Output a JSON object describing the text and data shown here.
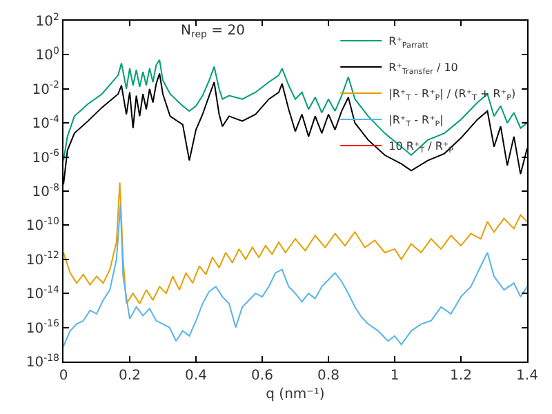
{
  "chart_data": {
    "type": "line",
    "xlabel": "q (nm⁻¹)",
    "annotations": [
      "N$_{rep}$ = 20"
    ],
    "log": "y",
    "legend": "top right",
    "xlim": [
      0,
      1.4
    ],
    "xticks": [
      0,
      0.2,
      0.4,
      0.6,
      0.8,
      1,
      1.2,
      1.4
    ],
    "ylim": [
      1e-18,
      100
    ],
    "yticks": [
      {
        "value": 100,
        "label": "10$^{2}$"
      },
      {
        "value": 1,
        "label": "10$^{0}$"
      },
      {
        "value": 0.01,
        "label": "10$^{-2}$"
      },
      {
        "value": 0.0001,
        "label": "10$^{-4}$"
      },
      {
        "value": 1e-06,
        "label": "10$^{-6}$"
      },
      {
        "value": 1e-08,
        "label": "10$^{-8}$"
      },
      {
        "value": 1e-10,
        "label": "10$^{-10}$"
      },
      {
        "value": 1e-12,
        "label": "10$^{-12}$"
      },
      {
        "value": 1e-14,
        "label": "10$^{-14}$"
      },
      {
        "value": 1e-16,
        "label": "10$^{-16}$"
      },
      {
        "value": 1e-18,
        "label": "10$^{-18}$"
      }
    ],
    "series": [
      {
        "name": "R⁺$_{Parratt}$",
        "color": "#009e73",
        "x": [
          0,
          0.012,
          0.033,
          0.074,
          0.116,
          0.165,
          0.175,
          0.19,
          0.2,
          0.21,
          0.22,
          0.23,
          0.24,
          0.25,
          0.26,
          0.27,
          0.28,
          0.29,
          0.3,
          0.322,
          0.36,
          0.38,
          0.4,
          0.42,
          0.44,
          0.455,
          0.47,
          0.48,
          0.5,
          0.54,
          0.58,
          0.62,
          0.65,
          0.66,
          0.68,
          0.7,
          0.72,
          0.74,
          0.76,
          0.78,
          0.8,
          0.82,
          0.84,
          0.86,
          0.88,
          0.92,
          0.97,
          1.02,
          1.05,
          1.1,
          1.15,
          1.2,
          1.25,
          1.28,
          1.3,
          1.32,
          1.34,
          1.36,
          1.38,
          1.4
        ],
        "values": [
          6.3e-07,
          1.6e-05,
          0.00025,
          0.0013,
          0.005,
          0.063,
          0.32,
          0.01,
          0.16,
          0.016,
          0.13,
          0.013,
          0.1,
          0.016,
          0.16,
          0.025,
          0.25,
          0.5,
          0.032,
          0.005,
          0.001,
          0.0005,
          0.001,
          0.004,
          0.032,
          0.2,
          0.01,
          0.0025,
          0.004,
          0.0025,
          0.0063,
          0.025,
          0.063,
          0.16,
          0.016,
          0.0025,
          0.0063,
          0.00063,
          0.0032,
          0.0004,
          0.0025,
          0.0005,
          0.004,
          0.05,
          0.0025,
          0.00025,
          2.5e-05,
          4e-06,
          1.3e-06,
          1e-05,
          2.5e-05,
          0.00016,
          0.0016,
          0.005,
          0.00025,
          0.001,
          0.0001,
          0.0004,
          5e-05,
          0.0001
        ]
      },
      {
        "name": "R⁺$_{Transfer}$ / 10",
        "color": "#000000",
        "x": [
          0,
          0.012,
          0.033,
          0.074,
          0.116,
          0.165,
          0.175,
          0.19,
          0.2,
          0.21,
          0.22,
          0.23,
          0.24,
          0.25,
          0.26,
          0.27,
          0.28,
          0.29,
          0.3,
          0.322,
          0.36,
          0.38,
          0.4,
          0.42,
          0.44,
          0.455,
          0.47,
          0.48,
          0.5,
          0.54,
          0.58,
          0.62,
          0.65,
          0.66,
          0.68,
          0.7,
          0.72,
          0.74,
          0.76,
          0.78,
          0.8,
          0.82,
          0.84,
          0.86,
          0.88,
          0.92,
          0.97,
          1.02,
          1.05,
          1.1,
          1.15,
          1.2,
          1.25,
          1.28,
          1.3,
          1.32,
          1.34,
          1.36,
          1.38,
          1.4
        ],
        "values": [
          2.5e-08,
          2.5e-06,
          2.5e-05,
          0.00013,
          0.0008,
          0.005,
          0.016,
          0.00032,
          0.0063,
          5e-05,
          0.004,
          0.00025,
          0.005,
          0.00063,
          0.01,
          0.0016,
          0.02,
          0.08,
          0.005,
          0.00025,
          8e-05,
          6.3e-07,
          4e-05,
          0.00032,
          0.004,
          0.025,
          0.00032,
          6.3e-05,
          0.00025,
          0.00013,
          0.00032,
          0.0025,
          0.0063,
          0.02,
          0.00063,
          3.2e-05,
          0.00032,
          1.6e-05,
          0.00025,
          2.5e-05,
          0.00032,
          4e-05,
          0.0005,
          0.0032,
          0.0001,
          1e-05,
          1.3e-06,
          4e-07,
          1.6e-07,
          6.3e-07,
          1.6e-06,
          1.3e-05,
          0.00016,
          0.0005,
          4e-06,
          6.3e-05,
          3.2e-07,
          1.6e-05,
          1e-07,
          3.2e-06
        ]
      },
      {
        "name": "|R⁺$_{T}$ - R⁺$_{P}$| / (R⁺$_{T}$ + R⁺$_{P}$)",
        "color": "#e69f00",
        "x": [
          0,
          0.02,
          0.04,
          0.06,
          0.08,
          0.1,
          0.12,
          0.14,
          0.16,
          0.17,
          0.18,
          0.19,
          0.21,
          0.23,
          0.25,
          0.27,
          0.29,
          0.31,
          0.33,
          0.35,
          0.37,
          0.39,
          0.41,
          0.43,
          0.45,
          0.47,
          0.49,
          0.51,
          0.53,
          0.55,
          0.57,
          0.59,
          0.61,
          0.63,
          0.65,
          0.67,
          0.7,
          0.73,
          0.76,
          0.79,
          0.82,
          0.85,
          0.88,
          0.91,
          0.94,
          0.97,
          1.0,
          1.02,
          1.05,
          1.08,
          1.11,
          1.14,
          1.17,
          1.2,
          1.23,
          1.26,
          1.28,
          1.3,
          1.33,
          1.36,
          1.38,
          1.4
        ],
        "values": [
          2.5e-12,
          1.6e-13,
          4e-14,
          1.3e-13,
          3.2e-14,
          1e-13,
          4e-14,
          2.5e-13,
          1e-11,
          3.2e-08,
          1e-12,
          2.5e-15,
          1e-14,
          2.5e-15,
          1.6e-14,
          4e-15,
          2.5e-14,
          1e-14,
          1e-13,
          1.6e-14,
          1.6e-13,
          4e-14,
          4e-13,
          1.3e-13,
          1.3e-12,
          3.2e-13,
          2.5e-12,
          6.3e-13,
          4e-12,
          1e-12,
          5e-12,
          1.3e-12,
          6.3e-12,
          2e-12,
          1e-11,
          2.5e-12,
          1.6e-11,
          3.2e-12,
          2.5e-11,
          5e-12,
          3.2e-11,
          6.3e-12,
          4e-11,
          5e-12,
          1.3e-11,
          2.5e-12,
          4e-12,
          1e-12,
          8e-12,
          2.5e-12,
          1.6e-11,
          4e-12,
          2.5e-11,
          6.3e-12,
          3.2e-11,
          1.6e-11,
          1.6e-10,
          4e-11,
          2.5e-10,
          6.3e-11,
          4e-10,
          1.6e-10
        ]
      },
      {
        "name": "|R⁺$_{T}$ - R⁺$_{P}$|",
        "color": "#56b4e9",
        "x": [
          0,
          0.02,
          0.04,
          0.06,
          0.08,
          0.1,
          0.12,
          0.14,
          0.16,
          0.172,
          0.18,
          0.2,
          0.22,
          0.24,
          0.26,
          0.28,
          0.3,
          0.32,
          0.34,
          0.36,
          0.38,
          0.4,
          0.42,
          0.44,
          0.46,
          0.48,
          0.5,
          0.52,
          0.54,
          0.56,
          0.58,
          0.6,
          0.62,
          0.64,
          0.66,
          0.68,
          0.7,
          0.72,
          0.74,
          0.76,
          0.78,
          0.8,
          0.82,
          0.84,
          0.86,
          0.88,
          0.9,
          0.92,
          0.95,
          0.98,
          1.0,
          1.02,
          1.05,
          1.08,
          1.11,
          1.14,
          1.17,
          1.2,
          1.23,
          1.26,
          1.28,
          1.3,
          1.33,
          1.36,
          1.38,
          1.4
        ],
        "values": [
          8e-18,
          6.3e-17,
          1.6e-16,
          2.5e-16,
          1e-15,
          6.3e-16,
          4e-15,
          1.6e-14,
          1e-12,
          1.6e-09,
          1e-13,
          3.2e-16,
          1.6e-15,
          5e-16,
          1.3e-15,
          2.5e-16,
          1.6e-16,
          1e-16,
          1.6e-17,
          6.3e-17,
          3.2e-17,
          2.5e-16,
          2.5e-15,
          1.3e-14,
          2.5e-14,
          6.3e-15,
          2.5e-15,
          1e-16,
          1.6e-15,
          4e-15,
          1e-14,
          6.3e-15,
          2.5e-14,
          1.6e-13,
          2.5e-13,
          2.5e-14,
          1e-14,
          3.2e-15,
          1e-14,
          5e-15,
          2.5e-14,
          6.3e-14,
          1.6e-13,
          5e-14,
          1e-14,
          1.6e-15,
          4e-16,
          1.6e-16,
          6.3e-17,
          1.6e-17,
          3.2e-17,
          1e-17,
          6.3e-17,
          1.6e-16,
          2.5e-16,
          1.6e-15,
          6.3e-16,
          6.3e-15,
          2.5e-14,
          4e-13,
          2.5e-12,
          1e-13,
          1.6e-14,
          4e-14,
          6.3e-15,
          2.5e-14
        ]
      },
      {
        "name": "10 R⁺$_{T}$ / R⁺$_{P}$",
        "color": "#ff0000"
      }
    ]
  }
}
